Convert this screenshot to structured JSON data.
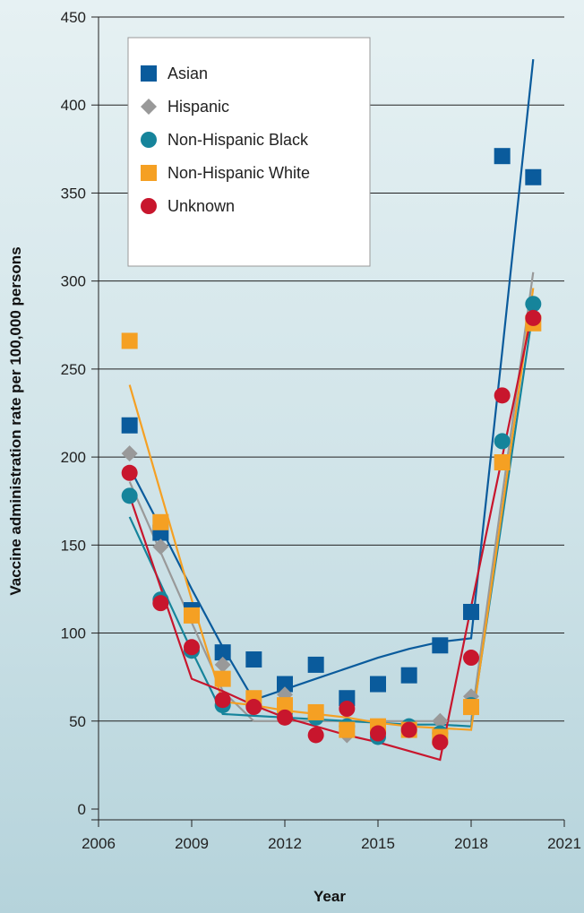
{
  "chart_data": {
    "type": "scatter",
    "title": "",
    "xlabel": "Year",
    "ylabel": "Vaccine administration rate per 100,000 persons",
    "xlim": [
      2006,
      2021
    ],
    "ylim": [
      0,
      450
    ],
    "xticks": [
      2006,
      2009,
      2012,
      2015,
      2018,
      2021
    ],
    "yticks": [
      0,
      50,
      100,
      150,
      200,
      250,
      300,
      350,
      400,
      450
    ],
    "grid": "horizontal",
    "legend_position": "top-left",
    "series": [
      {
        "name": "Asian",
        "marker": "square",
        "color": "#0a5b9c",
        "points": [
          [
            2007,
            218
          ],
          [
            2008,
            157
          ],
          [
            2009,
            113
          ],
          [
            2010,
            89
          ],
          [
            2011,
            85
          ],
          [
            2012,
            71
          ],
          [
            2013,
            82
          ],
          [
            2014,
            63
          ],
          [
            2015,
            71
          ],
          [
            2016,
            76
          ],
          [
            2017,
            93
          ],
          [
            2018,
            112
          ],
          [
            2019,
            371
          ],
          [
            2020,
            359
          ]
        ],
        "fit": [
          [
            2007,
            194
          ],
          [
            2008,
            160
          ],
          [
            2009,
            125
          ],
          [
            2010,
            92
          ],
          [
            2011,
            62
          ],
          [
            2012,
            68
          ],
          [
            2013,
            74
          ],
          [
            2014,
            80
          ],
          [
            2015,
            86
          ],
          [
            2016,
            91
          ],
          [
            2017,
            95
          ],
          [
            2018,
            97
          ],
          [
            2019,
            260
          ],
          [
            2020,
            426
          ]
        ]
      },
      {
        "name": "Hispanic",
        "marker": "diamond",
        "color": "#999999",
        "points": [
          [
            2007,
            202
          ],
          [
            2008,
            149
          ],
          [
            2009,
            90
          ],
          [
            2010,
            82
          ],
          [
            2011,
            60
          ],
          [
            2012,
            65
          ],
          [
            2013,
            55
          ],
          [
            2014,
            42
          ],
          [
            2015,
            44
          ],
          [
            2016,
            47
          ],
          [
            2017,
            50
          ],
          [
            2018,
            64
          ],
          [
            2019,
            209
          ],
          [
            2020,
            280
          ]
        ],
        "fit": [
          [
            2007,
            186
          ],
          [
            2008,
            146
          ],
          [
            2009,
            106
          ],
          [
            2010,
            67
          ],
          [
            2011,
            50
          ],
          [
            2012,
            50
          ],
          [
            2013,
            50
          ],
          [
            2014,
            50
          ],
          [
            2015,
            50
          ],
          [
            2016,
            50
          ],
          [
            2017,
            50
          ],
          [
            2018,
            50
          ],
          [
            2019,
            178
          ],
          [
            2020,
            305
          ]
        ]
      },
      {
        "name": "Non-Hispanic Black",
        "marker": "circle",
        "color": "#16849b",
        "points": [
          [
            2007,
            178
          ],
          [
            2008,
            119
          ],
          [
            2009,
            90
          ],
          [
            2010,
            59
          ],
          [
            2011,
            59
          ],
          [
            2012,
            55
          ],
          [
            2013,
            52
          ],
          [
            2014,
            47
          ],
          [
            2015,
            41
          ],
          [
            2016,
            47
          ],
          [
            2017,
            43
          ],
          [
            2018,
            59
          ],
          [
            2019,
            209
          ],
          [
            2020,
            287
          ]
        ],
        "fit": [
          [
            2007,
            166
          ],
          [
            2008,
            128
          ],
          [
            2009,
            90
          ],
          [
            2010,
            54
          ],
          [
            2011,
            53
          ],
          [
            2012,
            52
          ],
          [
            2013,
            51
          ],
          [
            2014,
            50
          ],
          [
            2015,
            49
          ],
          [
            2016,
            48
          ],
          [
            2017,
            48
          ],
          [
            2018,
            47
          ],
          [
            2019,
            165
          ],
          [
            2020,
            284
          ]
        ]
      },
      {
        "name": "Non-Hispanic White",
        "marker": "square",
        "color": "#f5a023",
        "points": [
          [
            2007,
            266
          ],
          [
            2008,
            163
          ],
          [
            2009,
            110
          ],
          [
            2010,
            74
          ],
          [
            2011,
            63
          ],
          [
            2012,
            59
          ],
          [
            2013,
            55
          ],
          [
            2014,
            45
          ],
          [
            2015,
            47
          ],
          [
            2016,
            45
          ],
          [
            2017,
            41
          ],
          [
            2018,
            58
          ],
          [
            2019,
            197
          ],
          [
            2020,
            276
          ]
        ],
        "fit": [
          [
            2007,
            241
          ],
          [
            2008,
            180
          ],
          [
            2009,
            119
          ],
          [
            2010,
            61
          ],
          [
            2011,
            59
          ],
          [
            2012,
            56
          ],
          [
            2013,
            54
          ],
          [
            2014,
            52
          ],
          [
            2015,
            49
          ],
          [
            2016,
            47
          ],
          [
            2017,
            46
          ],
          [
            2018,
            45
          ],
          [
            2019,
            170
          ],
          [
            2020,
            296
          ]
        ]
      },
      {
        "name": "Unknown",
        "marker": "circle",
        "color": "#c8162d",
        "points": [
          [
            2007,
            191
          ],
          [
            2008,
            117
          ],
          [
            2009,
            92
          ],
          [
            2010,
            62
          ],
          [
            2011,
            58
          ],
          [
            2012,
            52
          ],
          [
            2013,
            42
          ],
          [
            2014,
            57
          ],
          [
            2015,
            43
          ],
          [
            2016,
            45
          ],
          [
            2017,
            38
          ],
          [
            2018,
            86
          ],
          [
            2019,
            235
          ],
          [
            2020,
            279
          ]
        ],
        "fit": [
          [
            2007,
            178
          ],
          [
            2008,
            126
          ],
          [
            2009,
            74
          ],
          [
            2010,
            67
          ],
          [
            2011,
            59
          ],
          [
            2012,
            52
          ],
          [
            2013,
            47
          ],
          [
            2014,
            42
          ],
          [
            2015,
            38
          ],
          [
            2016,
            33
          ],
          [
            2017,
            28
          ],
          [
            2018,
            115
          ],
          [
            2019,
            200
          ],
          [
            2020,
            285
          ]
        ]
      }
    ]
  }
}
